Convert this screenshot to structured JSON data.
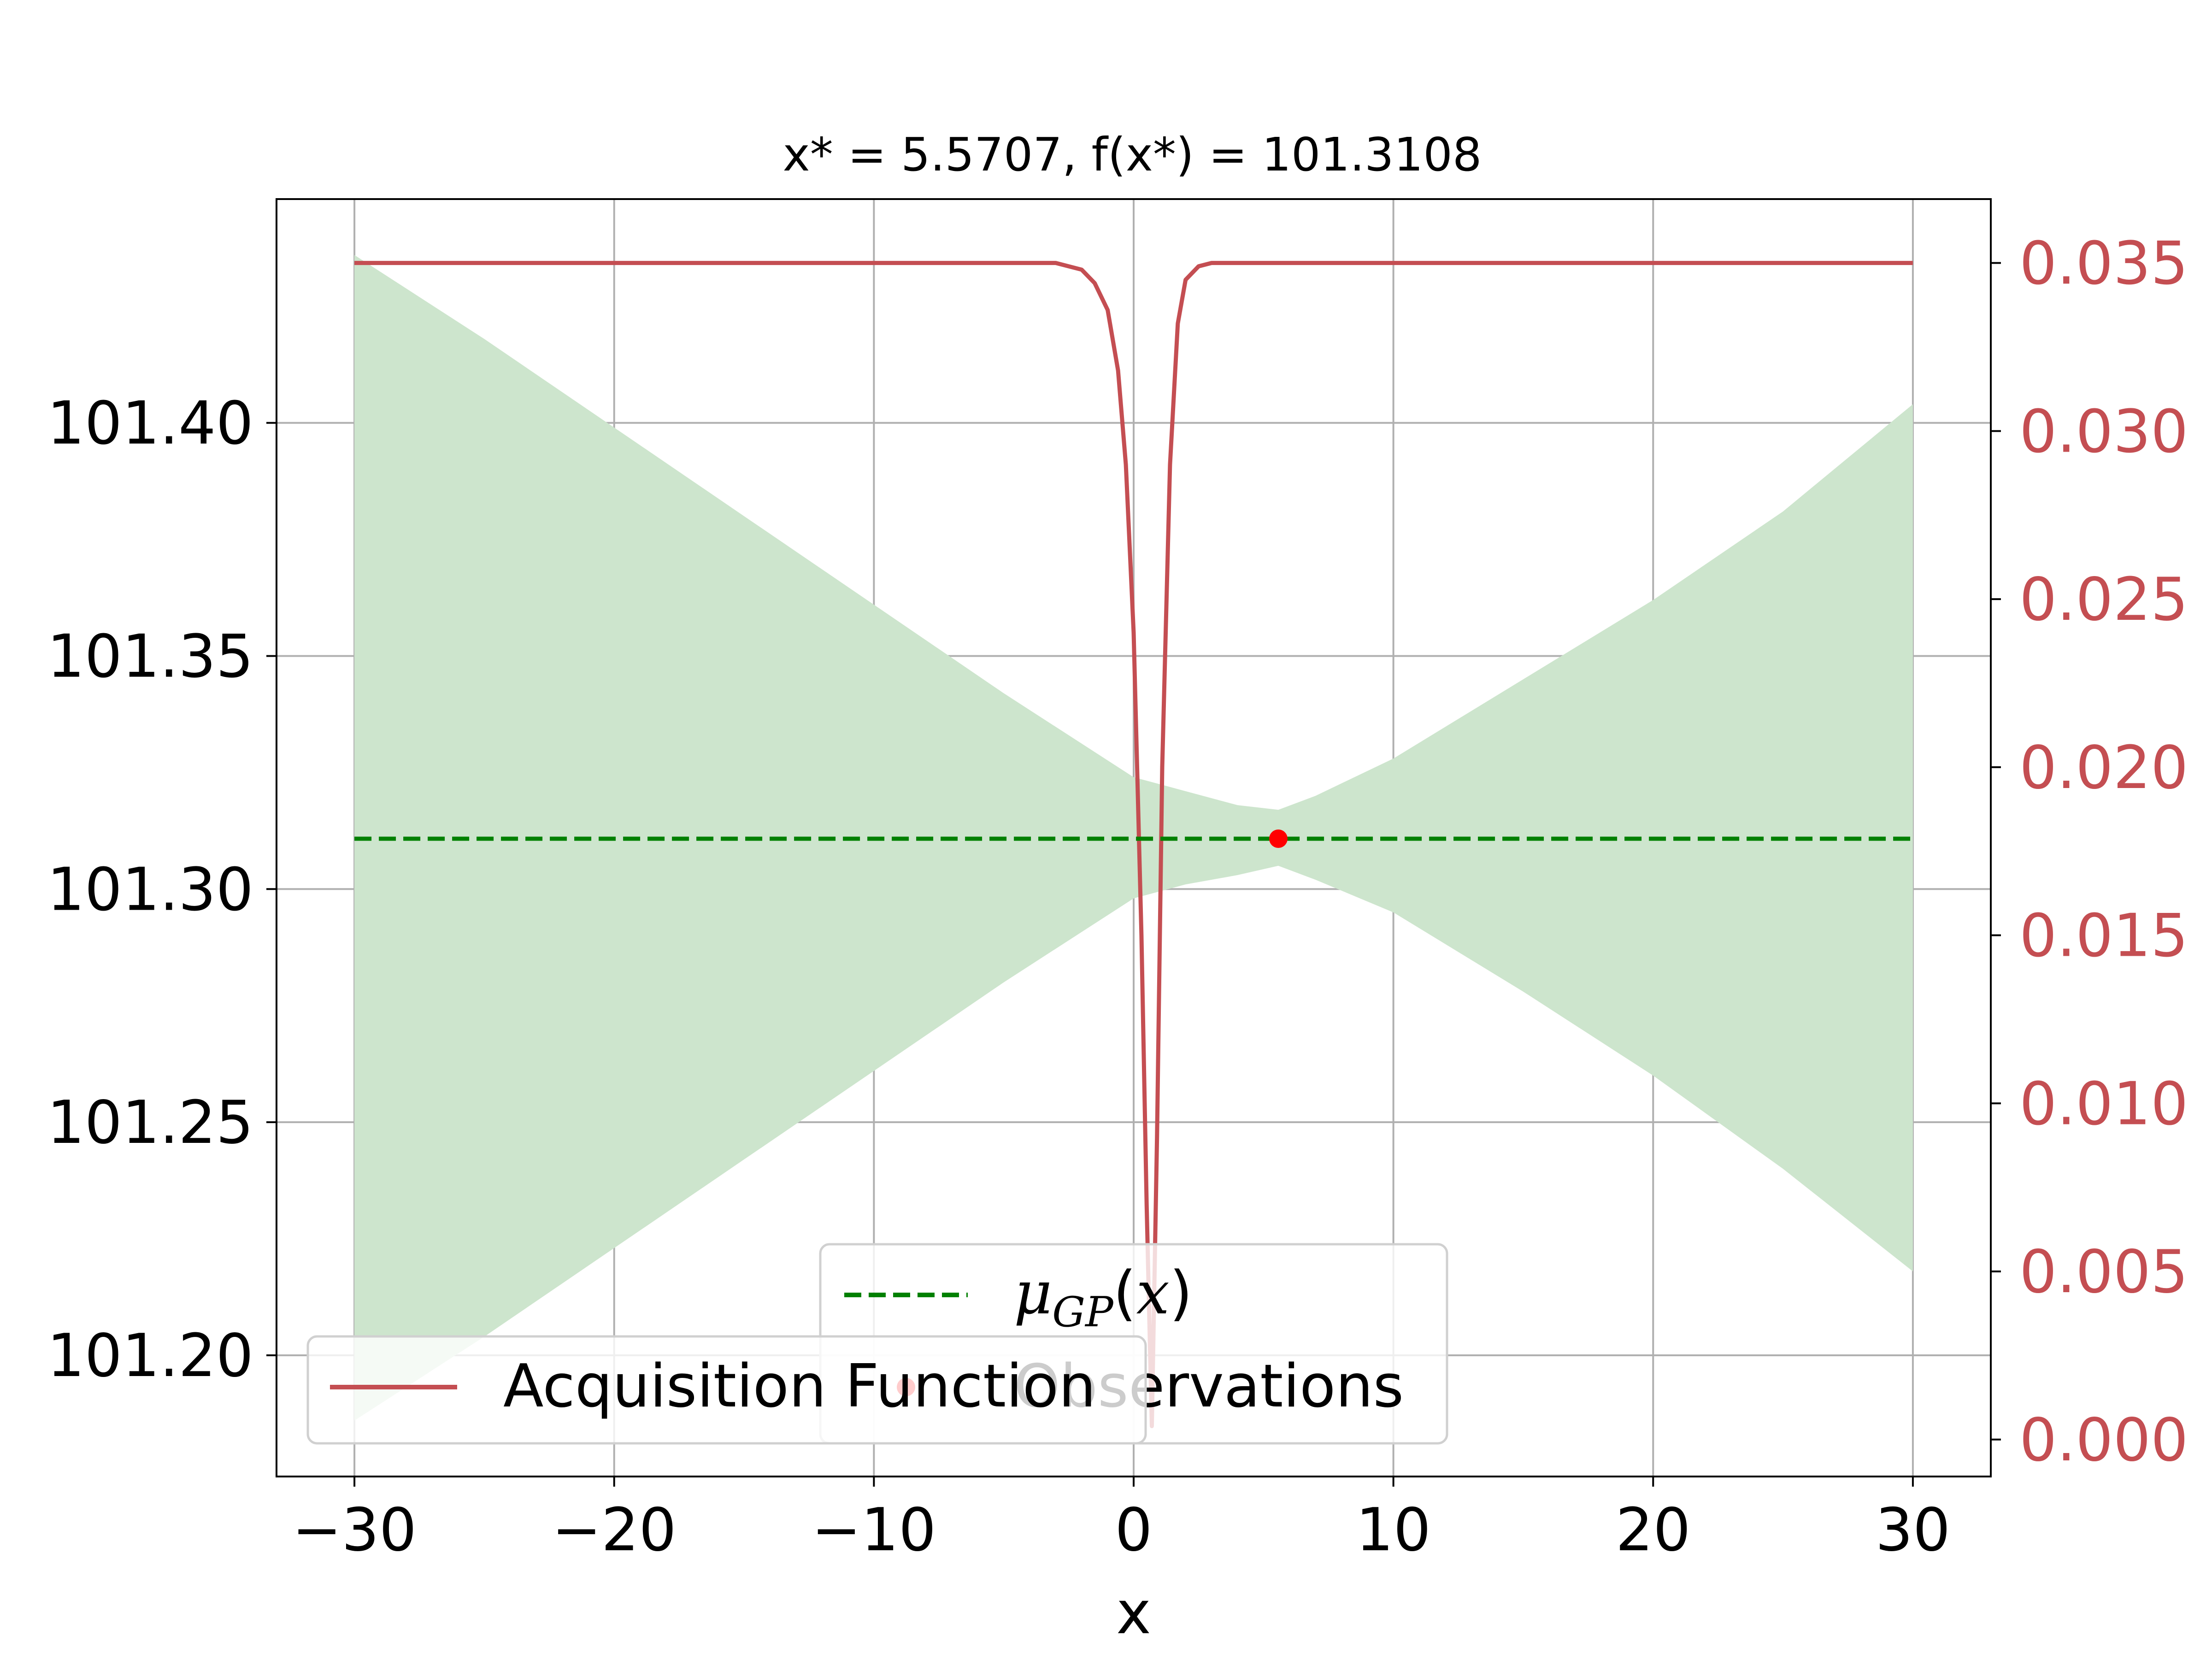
{
  "chart_data": {
    "type": "line",
    "title": "x* = 5.5707, f(x*) = 101.3108",
    "xlabel": "x",
    "ylabel": "",
    "y2label": "",
    "xlim": [
      -33,
      33
    ],
    "ylim": [
      101.174,
      101.448
    ],
    "y2lim": [
      -0.0011,
      0.0369
    ],
    "xticks": [
      -30,
      -20,
      -10,
      0,
      10,
      20,
      30
    ],
    "xtick_labels": [
      "−30",
      "−20",
      "−10",
      "0",
      "10",
      "20",
      "30"
    ],
    "yticks": [
      101.2,
      101.25,
      101.3,
      101.35,
      101.4
    ],
    "ytick_labels": [
      "101.20",
      "101.25",
      "101.30",
      "101.35",
      "101.40"
    ],
    "y2ticks": [
      0.0,
      0.005,
      0.01,
      0.015,
      0.02,
      0.025,
      0.03,
      0.035
    ],
    "y2tick_labels": [
      "0.000",
      "0.005",
      "0.010",
      "0.015",
      "0.020",
      "0.025",
      "0.030",
      "0.035"
    ],
    "grid": true,
    "colors": {
      "mean": "#008000",
      "band": "#cde5cd",
      "acquisition": "#c44e52",
      "observation": "#ff0000",
      "axis": "#000000",
      "grid": "#b0b0b0",
      "right_tick_labels": "#c44e52"
    },
    "series": [
      {
        "name": "μ_GP(x)",
        "kind": "dashed-line",
        "axis": "left",
        "x": [
          -30,
          30
        ],
        "y": [
          101.3108,
          101.3108
        ]
      },
      {
        "kind": "confidence-band",
        "axis": "left",
        "x": [
          -30,
          -25,
          -20,
          -15,
          -10,
          -5,
          0,
          2,
          4,
          5.57,
          7,
          10,
          15,
          20,
          25,
          30
        ],
        "upper": [
          101.436,
          101.418,
          101.399,
          101.38,
          101.361,
          101.342,
          101.324,
          101.321,
          101.318,
          101.317,
          101.32,
          101.328,
          101.345,
          101.362,
          101.381,
          101.404
        ],
        "lower": [
          101.186,
          101.204,
          101.223,
          101.242,
          101.261,
          101.28,
          101.298,
          101.301,
          101.303,
          101.305,
          101.302,
          101.295,
          101.278,
          101.26,
          101.24,
          101.218
        ]
      },
      {
        "name": "Acquisition Function",
        "kind": "line",
        "axis": "right",
        "x": [
          -30,
          -3,
          -2,
          -1.5,
          -1,
          -0.6,
          -0.3,
          0,
          0.3,
          0.5,
          0.7,
          0.9,
          1.1,
          1.4,
          1.7,
          2,
          2.5,
          3,
          4,
          30
        ],
        "y": [
          0.035,
          0.035,
          0.0348,
          0.0344,
          0.0336,
          0.0318,
          0.029,
          0.024,
          0.015,
          0.007,
          0.0004,
          0.009,
          0.02,
          0.029,
          0.0332,
          0.0345,
          0.0349,
          0.035,
          0.035,
          0.035
        ]
      },
      {
        "name": "Observations",
        "kind": "scatter",
        "axis": "left",
        "x": [
          5.5707
        ],
        "y": [
          101.3108
        ]
      }
    ],
    "legends": [
      {
        "placement": "lower-center",
        "entries": [
          "μ_GP(x)",
          "Observations"
        ]
      },
      {
        "placement": "lower-left",
        "entries": [
          "Acquisition Function"
        ]
      }
    ]
  }
}
